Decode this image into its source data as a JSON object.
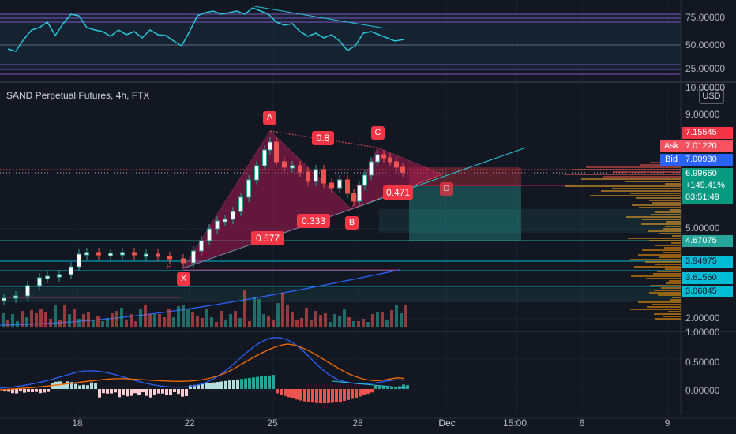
{
  "header": {
    "symbol_title": "SAND Perpetual Futures, 4h, FTX",
    "currency_badge": "USD"
  },
  "rsi_panel": {
    "tick_labels": [
      "75.00000",
      "50.00000",
      "25.00000"
    ]
  },
  "price_panel": {
    "tick_labels": [
      "10.00000",
      "9.00000",
      "5.00000",
      "2.00000"
    ],
    "price_labels": [
      {
        "text": "7.15545",
        "bg": "#f23645",
        "fg": "#ffffff"
      },
      {
        "text": "7.01220",
        "bg": "#f7525f",
        "fg": "#ffffff"
      },
      {
        "text": "7.00930",
        "bg": "#2962ff",
        "fg": "#ffffff"
      },
      {
        "text": "6.99660",
        "bg": "#089981",
        "fg": "#ffffff"
      },
      {
        "text": "+149.41%",
        "bg": "#089981",
        "fg": "#ffffff"
      },
      {
        "text": "03:51:49",
        "bg": "#089981",
        "fg": "#ffffff"
      },
      {
        "text": "4.67075",
        "bg": "#26a69a",
        "fg": "#ffffff"
      },
      {
        "text": "3.94975",
        "bg": "#00bcd4",
        "fg": "#131722"
      },
      {
        "text": "3.61560",
        "bg": "#00bcd4",
        "fg": "#131722"
      },
      {
        "text": "3.06845",
        "bg": "#00bcd4",
        "fg": "#131722"
      }
    ],
    "ask_label": "Ask",
    "bid_label": "Bid",
    "pattern_points": [
      "A",
      "B",
      "C",
      "D",
      "X",
      "P"
    ],
    "ratios": [
      "0.8",
      "0.471",
      "0.333",
      "0.577"
    ]
  },
  "macd_panel": {
    "tick_labels": [
      "1.00000",
      "0.50000",
      "0.00000"
    ]
  },
  "time_axis": {
    "labels": [
      "18",
      "22",
      "25",
      "28",
      "Dec",
      "15:00",
      "6",
      "9"
    ]
  },
  "colors": {
    "background": "#131722",
    "up": "#26a69a",
    "down": "#ef5350",
    "pattern_fill": "#c2185b",
    "rsi_line": "#26c6da",
    "macd_line": "#2962ff",
    "signal_line": "#ff6d00"
  }
}
